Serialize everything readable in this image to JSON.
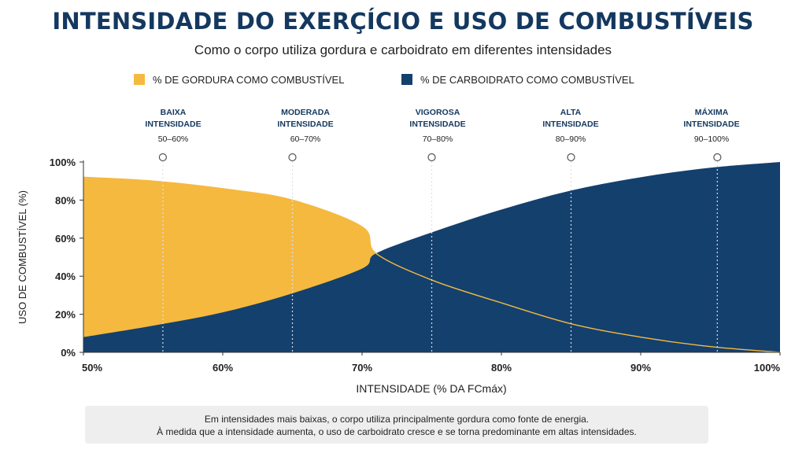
{
  "chart_data": {
    "type": "area",
    "title": "INTENSIDADE DO EXERÇÍCIO E USO DE COMBUSTÍVEIS",
    "subtitle": "Como o corpo utiliza gordura e carboidrato em diferentes intensidades",
    "xlabel": "INTENSIDADE (% DA FCmáx)",
    "ylabel": "USO DE COMBUSTÍVEL (%)",
    "xlim": [
      50,
      100
    ],
    "ylim": [
      0,
      100
    ],
    "x_ticks": [
      "50%",
      "60%",
      "70%",
      "80%",
      "90%",
      "100%"
    ],
    "y_ticks": [
      "0%",
      "20%",
      "40%",
      "60%",
      "80%",
      "100%"
    ],
    "grid": false,
    "legend_position": "top",
    "x": [
      50,
      55,
      60,
      65,
      70,
      71,
      75,
      80,
      85,
      90,
      95,
      100
    ],
    "series": [
      {
        "name": "% DE GORDURA COMO COMBUSTÍVEL",
        "color": "#f5b93f",
        "values": [
          92,
          90,
          86,
          80,
          66,
          52,
          38,
          26,
          15,
          8,
          3,
          0
        ]
      },
      {
        "name": "% DE CARBOIDRATO COMO COMBUSTÍVEL",
        "color": "#14406e",
        "values": [
          8,
          14,
          21,
          31,
          44,
          52,
          63,
          75,
          85,
          92,
          97,
          100
        ]
      }
    ],
    "zones": [
      {
        "label1": "BAIXA",
        "label2": "INTENSIDADE",
        "range": "50–60%",
        "x": 55.7
      },
      {
        "label1": "MODERADA",
        "label2": "INTENSIDADE",
        "range": "60–70%",
        "x": 65
      },
      {
        "label1": "VIGOROSA",
        "label2": "INTENSIDADE",
        "range": "70–80%",
        "x": 75
      },
      {
        "label1": "ALTA",
        "label2": "INTENSIDADE",
        "range": "80–90%",
        "x": 85
      },
      {
        "label1": "MÁXIMA",
        "label2": "INTENSIDADE",
        "range": "90–100%",
        "x": 95.5
      }
    ]
  },
  "footer": {
    "line1": "Em intensidades mais baixas, o corpo utiliza principalmente gordura como fonte de energia.",
    "line2": "À medida que a intensidade aumenta, o uso de carboidrato cresce e se torna predominante em altas intensidades."
  }
}
